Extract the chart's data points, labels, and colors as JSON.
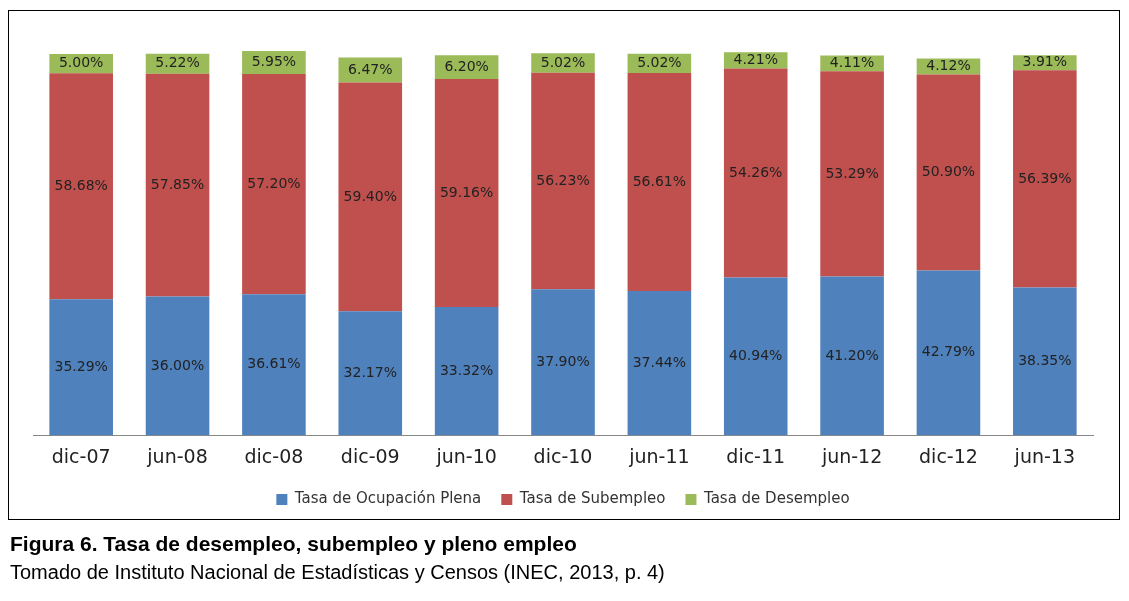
{
  "chart_data": {
    "type": "bar",
    "stacked": true,
    "title": "Figura 6.  Tasa de desempleo, subempleo y pleno empleo",
    "annotations": [
      "Tomado de Instituto Nacional de Estadísticas y Censos (INEC, 2013, p. 4)"
    ],
    "categories": [
      "dic-07",
      "jun-08",
      "dic-08",
      "dic-09",
      "jun-10",
      "dic-10",
      "jun-11",
      "dic-11",
      "jun-12",
      "dic-12",
      "jun-13"
    ],
    "series": [
      {
        "name": "Tasa de Ocupación Plena",
        "color": "#4f81bd",
        "values": [
          35.29,
          36.0,
          36.61,
          32.17,
          33.32,
          37.9,
          37.44,
          40.94,
          41.2,
          42.79,
          38.35
        ],
        "value_labels": [
          "35.29%",
          "36.00%",
          "36.61%",
          "32.17%",
          "33.32%",
          "37.90%",
          "37.44%",
          "40.94%",
          "41.20%",
          "42.79%",
          "38.35%"
        ]
      },
      {
        "name": "Tasa de Subempleo",
        "color": "#c0504d",
        "values": [
          58.68,
          57.85,
          57.2,
          59.4,
          59.16,
          56.23,
          56.61,
          54.26,
          53.29,
          50.9,
          56.39
        ],
        "value_labels": [
          "58.68%",
          "57.85%",
          "57.20%",
          "59.40%",
          "59.16%",
          "56.23%",
          "56.61%",
          "54.26%",
          "53.29%",
          "50.90%",
          "56.39%"
        ]
      },
      {
        "name": "Tasa de Desempleo",
        "color": "#9bbb59",
        "values": [
          5.0,
          5.22,
          5.95,
          6.47,
          6.2,
          5.02,
          5.02,
          4.21,
          4.11,
          4.12,
          3.91
        ],
        "value_labels": [
          "5.00%",
          "5.22%",
          "5.95%",
          "6.47%",
          "6.20%",
          "5.02%",
          "5.02%",
          "4.21%",
          "4.11%",
          "4.12%",
          "3.91%"
        ]
      }
    ],
    "legend": "bottom"
  }
}
